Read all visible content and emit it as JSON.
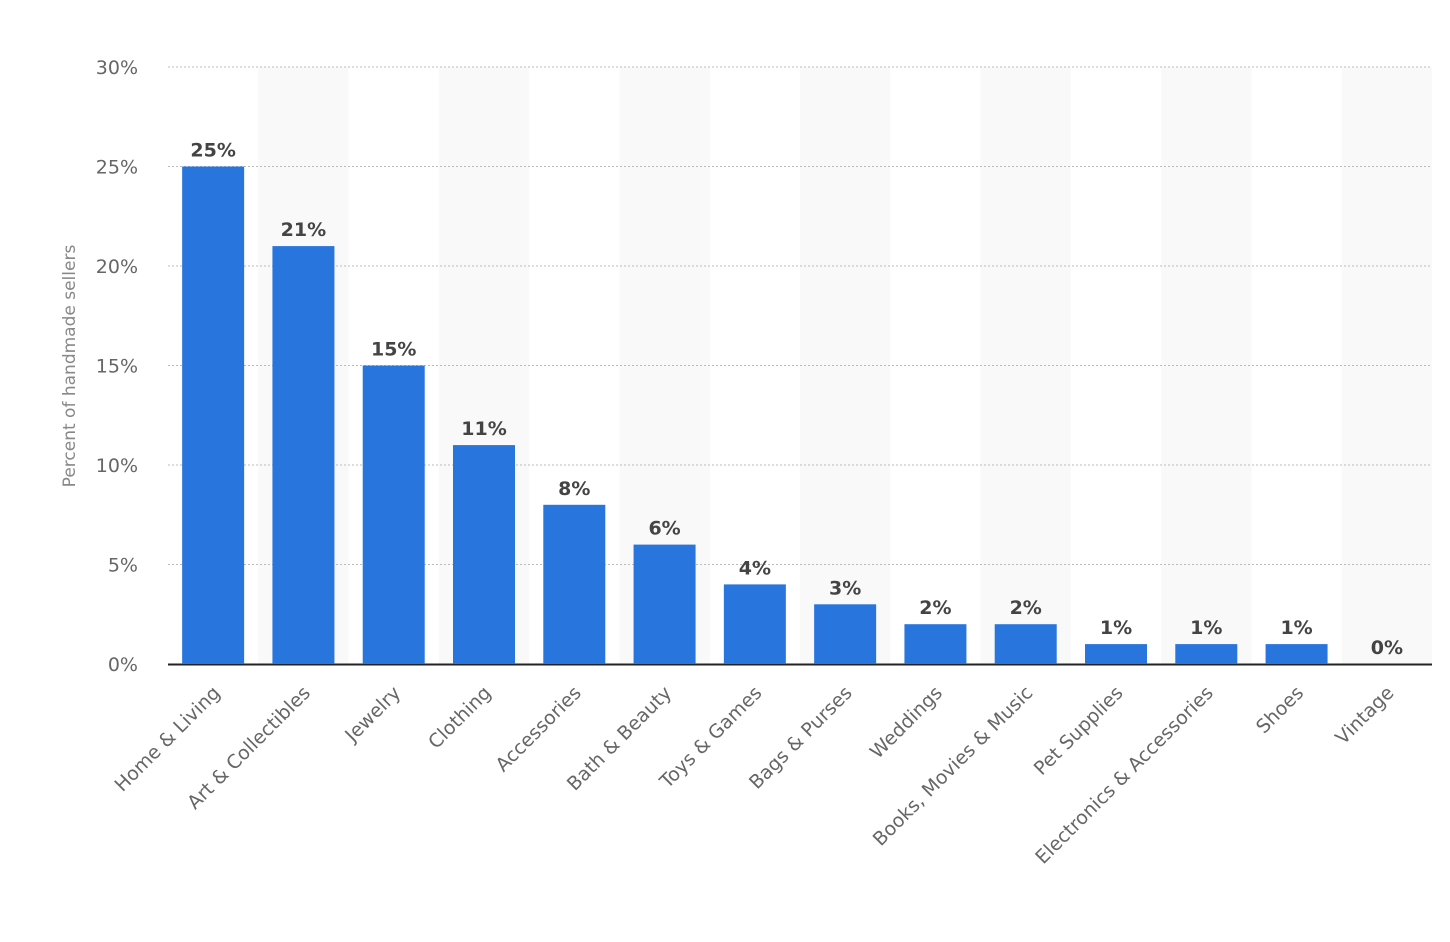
{
  "chart_data": {
    "type": "bar",
    "title": "",
    "xlabel": "",
    "ylabel": "Percent of handmade sellers",
    "ylim": [
      0,
      30
    ],
    "yticks": [
      0,
      5,
      10,
      15,
      20,
      25,
      30
    ],
    "ytick_labels": [
      "0%",
      "5%",
      "10%",
      "15%",
      "20%",
      "25%",
      "30%"
    ],
    "grid": true,
    "categories": [
      "Home & Living",
      "Art & Collectibles",
      "Jewelry",
      "Clothing",
      "Accessories",
      "Bath & Beauty",
      "Toys & Games",
      "Bags & Purses",
      "Weddings",
      "Books, Movies & Music",
      "Pet Supplies",
      "Electronics & Accessories",
      "Shoes",
      "Vintage"
    ],
    "values": [
      25,
      21,
      15,
      11,
      8,
      6,
      4,
      3,
      2,
      2,
      1,
      1,
      1,
      0
    ],
    "data_labels": [
      "25%",
      "21%",
      "15%",
      "11%",
      "8%",
      "6%",
      "4%",
      "3%",
      "2%",
      "2%",
      "1%",
      "1%",
      "1%",
      "0%"
    ],
    "colors": {
      "bar": "#2876dd",
      "band": "#f9f9f9",
      "grid": "#bbbbbb",
      "axis": "#222222"
    }
  }
}
